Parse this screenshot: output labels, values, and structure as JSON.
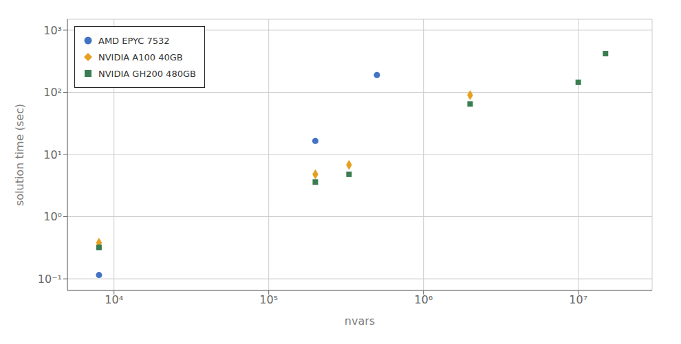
{
  "chart_data": {
    "type": "scatter",
    "xlabel": "nvars",
    "ylabel": "solution time (sec)",
    "log": true,
    "grid": true,
    "legend": "upper left",
    "xlim": [
      5000,
      30000000
    ],
    "ylim": [
      0.065,
      1500
    ],
    "xticks": [
      {
        "value": 10000,
        "label": "10⁴"
      },
      {
        "value": 100000,
        "label": "10⁵"
      },
      {
        "value": 1000000,
        "label": "10⁶"
      },
      {
        "value": 10000000,
        "label": "10⁷"
      }
    ],
    "yticks": [
      {
        "value": 0.1,
        "label": "10⁻¹"
      },
      {
        "value": 1,
        "label": "10⁰"
      },
      {
        "value": 10,
        "label": "10¹"
      },
      {
        "value": 100,
        "label": "10²"
      },
      {
        "value": 1000,
        "label": "10³"
      }
    ],
    "series": [
      {
        "name": "AMD EPYC 7532",
        "color": "#4472C4",
        "marker": "circle",
        "x": [
          8000,
          200000,
          500000
        ],
        "values": [
          0.115,
          16.5,
          190
        ]
      },
      {
        "name": "NVIDIA A100 40GB",
        "color": "#E6A020",
        "marker": "diamond",
        "x": [
          8000,
          200000,
          330000,
          2000000
        ],
        "values": [
          0.38,
          4.8,
          6.8,
          90
        ]
      },
      {
        "name": "NVIDIA GH200 480GB",
        "color": "#3A7D52",
        "marker": "square",
        "x": [
          8000,
          200000,
          330000,
          2000000,
          10000000,
          15000000
        ],
        "values": [
          0.32,
          3.6,
          4.8,
          65,
          145,
          420
        ]
      }
    ]
  }
}
